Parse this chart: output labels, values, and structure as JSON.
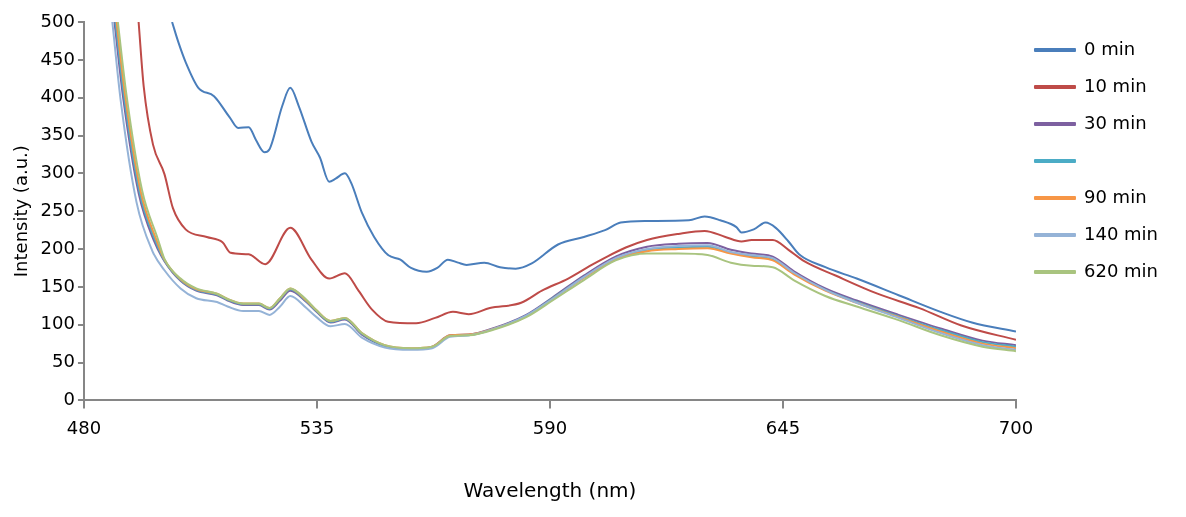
{
  "chart_data": {
    "type": "line",
    "xlabel": "Wavelength (nm)",
    "ylabel": "Intensity (a.u.)",
    "xlim": [
      480,
      700
    ],
    "xticks": [
      480,
      535,
      590,
      645,
      700
    ],
    "ylim": [
      0,
      500
    ],
    "yticks": [
      0,
      50,
      100,
      150,
      200,
      250,
      300,
      350,
      400,
      450,
      500
    ],
    "grid": false,
    "legend": "right",
    "marker": "none",
    "series": [
      {
        "name": "0 min",
        "color": "#4a7ebb",
        "x": [
          500.8,
          502.3,
          504,
          507,
          510.7,
          514.4,
          516.4,
          518.9,
          520.6,
          522.6,
          523.8,
          526.8,
          528.7,
          530.7,
          533.7,
          535.7,
          537.9,
          539.4,
          541.6,
          543.1,
          545.6,
          548.5,
          551.8,
          554.7,
          557.2,
          560.9,
          563.4,
          565.9,
          568.3,
          570.3,
          574.5,
          578.2,
          581.9,
          585.7,
          591.9,
          598,
          603,
          606.7,
          612.9,
          622.8,
          626.5,
          630.2,
          634,
          635.2,
          638.1,
          640.9,
          643.3,
          646.3,
          648.8,
          655,
          662.4,
          672.3,
          682.2,
          689.6,
          700
        ],
        "values": [
          500,
          473,
          447,
          413,
          402,
          374,
          360,
          361,
          344,
          328,
          332,
          389,
          413,
          389,
          342,
          321,
          289,
          293,
          300,
          287,
          248,
          216,
          192,
          186,
          175,
          170,
          175,
          186,
          182,
          179,
          182,
          176,
          174,
          181,
          206,
          216,
          225,
          235,
          237,
          238,
          243,
          238,
          229,
          222,
          226,
          235,
          228,
          210,
          193,
          176,
          161,
          139,
          117,
          103,
          91
        ]
      },
      {
        "name": "10 min",
        "color": "#be4b48",
        "x": [
          492.9,
          494.1,
          496.3,
          499,
          501,
          504,
          509,
          512.7,
          514.6,
          518.9,
          522.8,
          528.7,
          533.7,
          537.9,
          541.6,
          544.8,
          548,
          551.8,
          558.4,
          562.9,
          567.1,
          570.8,
          575.8,
          583.2,
          588.1,
          594.3,
          600.5,
          607.9,
          612.9,
          620.3,
          626.5,
          631.4,
          635.2,
          637.6,
          642.6,
          646.3,
          650,
          657.4,
          667.3,
          677.2,
          687.1,
          700
        ],
        "values": [
          500,
          415,
          338,
          299,
          254,
          226,
          216,
          209,
          195,
          193,
          180,
          228,
          186,
          161,
          168,
          145,
          120,
          104,
          102,
          109,
          117,
          114,
          122,
          129,
          145,
          161,
          181,
          202,
          212,
          220,
          224,
          216,
          210,
          212,
          212,
          199,
          184,
          165,
          141,
          122,
          99,
          80
        ]
      },
      {
        "name": "30 min",
        "color": "#7d60a0",
        "x": [
          487.2,
          489.2,
          492.9,
          496.6,
          499,
          502.8,
          506.5,
          511.4,
          513.9,
          517.6,
          521.3,
          523.8,
          526.3,
          528.7,
          532.5,
          534.9,
          538.2,
          541.6,
          545.6,
          551,
          557.2,
          562.2,
          566.4,
          570.8,
          577,
          584.4,
          590.6,
          598,
          605.5,
          612.9,
          620.3,
          627.2,
          632.7,
          637.6,
          642.6,
          647.5,
          655,
          662.4,
          672.3,
          682.2,
          692.1,
          700
        ],
        "values": [
          500,
          402,
          274,
          210,
          184,
          158,
          145,
          139,
          132,
          126,
          126,
          120,
          132,
          145,
          130,
          117,
          103,
          107,
          87,
          72,
          68,
          71,
          86,
          87,
          96,
          113,
          136,
          165,
          190,
          203,
          207,
          208,
          199,
          194,
          190,
          171,
          148,
          132,
          113,
          95,
          79,
          73
        ]
      },
      {
        "color": "#4bacc6",
        "x": [
          487.45,
          489.45,
          493.15,
          496.85,
          499,
          502.8,
          506.5,
          511.4,
          513.9,
          517.6,
          521.3,
          523.8,
          526.3,
          528.7,
          532.5,
          534.9,
          538.2,
          541.6,
          545.6,
          551,
          557.2,
          562.2,
          566.4,
          570.8,
          577,
          584.4,
          590.6,
          598,
          605.5,
          612.9,
          620.3,
          627.2,
          632.7,
          637.6,
          642.6,
          647.5,
          655,
          662.4,
          672.3,
          682.2,
          692.1,
          700
        ],
        "values": [
          500,
          403,
          275,
          211,
          185,
          159,
          146,
          140,
          133,
          127,
          127,
          121,
          134,
          147,
          131,
          118,
          104,
          108,
          88,
          72,
          68,
          70,
          85,
          86,
          95,
          112,
          135,
          163,
          187,
          199,
          202,
          203,
          195,
          190,
          186,
          168,
          146,
          130,
          111,
          93,
          77,
          71
        ]
      },
      {
        "name": "90 min",
        "color": "#f79646",
        "x": [
          487.7,
          489.7,
          493.4,
          497.1,
          499,
          502.8,
          506.5,
          511.4,
          513.9,
          517.6,
          521.3,
          523.8,
          526.3,
          528.7,
          532.5,
          534.9,
          538.2,
          541.6,
          545.6,
          551,
          557.2,
          562.2,
          566.4,
          570.8,
          577,
          584.4,
          590.6,
          598,
          605.5,
          612.9,
          620.3,
          627.2,
          632.7,
          637.6,
          642.6,
          647.5,
          655,
          662.4,
          672.3,
          682.2,
          692.1,
          700
        ],
        "values": [
          500,
          404,
          276,
          212,
          186,
          160,
          147,
          141,
          134,
          128,
          128,
          122,
          135,
          148,
          132,
          119,
          105,
          109,
          89,
          73,
          69,
          71,
          86,
          87,
          95,
          111,
          134,
          162,
          186,
          197,
          200,
          201,
          194,
          189,
          185,
          167,
          145,
          129,
          110,
          91,
          75,
          69
        ]
      },
      {
        "name": "140 min",
        "color": "#95b3d7",
        "x": [
          486.7,
          488.7,
          492.4,
          496.1,
          499,
          502.8,
          506.5,
          511.4,
          513.9,
          517.6,
          521.3,
          523.8,
          526.3,
          528.7,
          532.5,
          534.9,
          538.2,
          541.6,
          545.6,
          551,
          557.2,
          562.2,
          566.4,
          570.8,
          577,
          584.4,
          590.6,
          598,
          605.5,
          612.9,
          620.3,
          627.2,
          632.7,
          637.6,
          642.6,
          647.5,
          655,
          662.4,
          672.3,
          682.2,
          692.1,
          700
        ],
        "values": [
          500,
          395,
          262,
          198,
          172,
          148,
          135,
          130,
          124,
          118,
          118,
          113,
          124,
          138,
          122,
          110,
          98,
          101,
          83,
          70,
          67,
          69,
          84,
          86,
          95,
          112,
          134,
          163,
          188,
          200,
          204,
          205,
          196,
          192,
          188,
          169,
          146,
          129,
          109,
          89,
          73,
          67
        ]
      },
      {
        "name": "620 min",
        "color": "#a9c47f",
        "x": [
          488,
          490,
          493.7,
          497.4,
          499,
          502.8,
          506.5,
          511.4,
          513.9,
          517.6,
          521.3,
          523.8,
          526.3,
          528.7,
          532.5,
          534.9,
          538.2,
          541.6,
          545.6,
          551,
          557.2,
          562.2,
          566.4,
          570.8,
          577,
          584.4,
          590.6,
          598,
          605.5,
          612.9,
          620.3,
          627.2,
          632.7,
          637.6,
          642.6,
          647.5,
          655,
          662.4,
          672.3,
          682.2,
          692.1,
          700
        ],
        "values": [
          500,
          405,
          278,
          214,
          187,
          161,
          148,
          141,
          134,
          128,
          128,
          122,
          135,
          148,
          133,
          119,
          105,
          109,
          89,
          73,
          69,
          71,
          85,
          86,
          94,
          110,
          132,
          159,
          185,
          194,
          194,
          192,
          182,
          178,
          176,
          159,
          138,
          124,
          106,
          86,
          71,
          65
        ]
      }
    ]
  }
}
